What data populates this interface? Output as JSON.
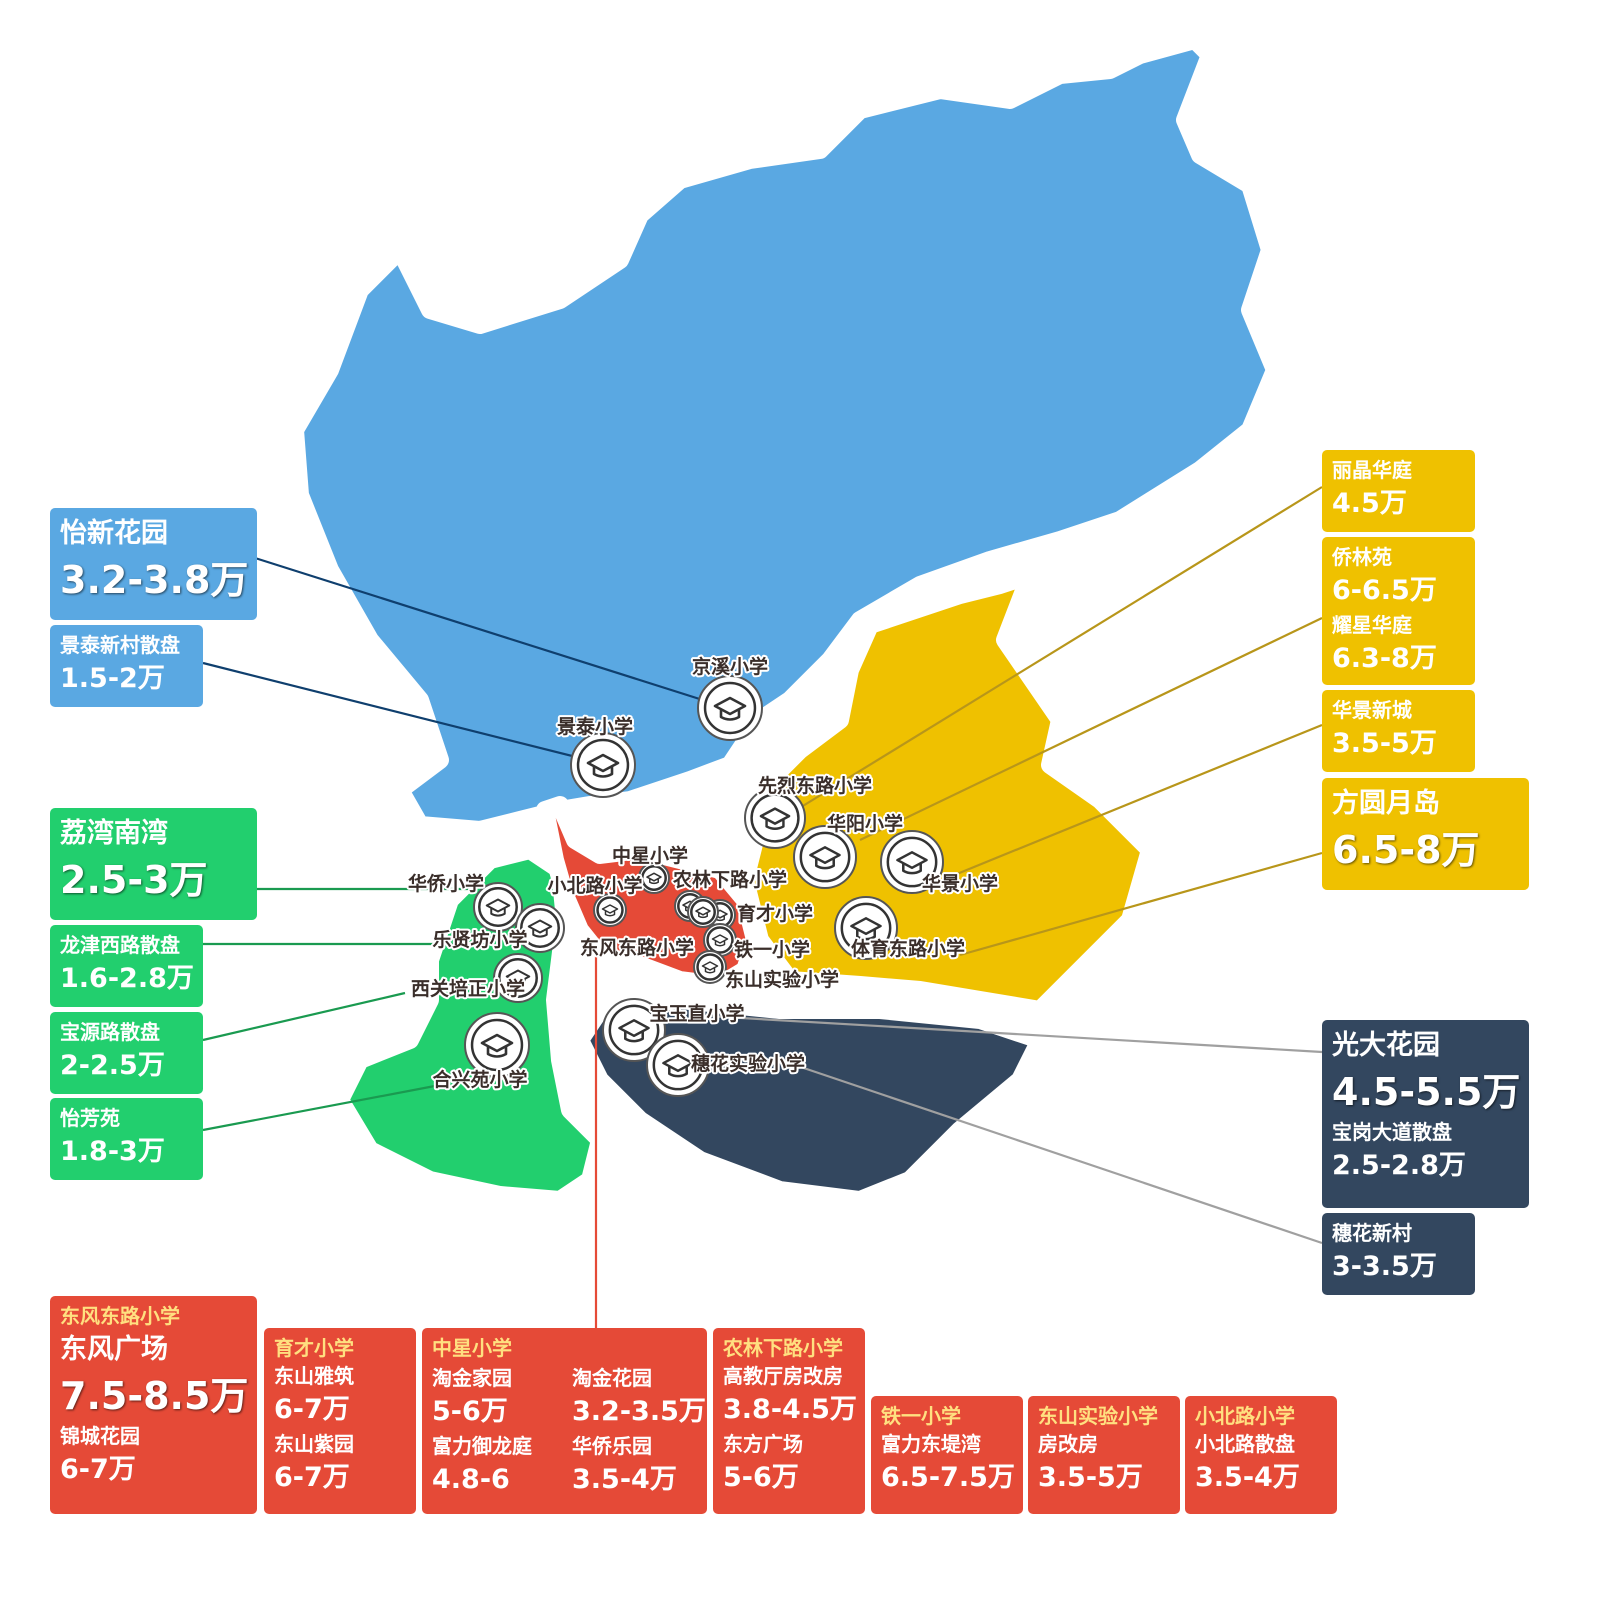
{
  "colors": {
    "blue": "#5aa8e2",
    "yellow": "#efc100",
    "green": "#22cf6e",
    "navy": "#33475f",
    "red": "#e54a37"
  },
  "schools": [
    {
      "name": "京溪小学",
      "icon": "graduation-cap-icon"
    },
    {
      "name": "景泰小学",
      "icon": "graduation-cap-icon"
    },
    {
      "name": "先烈东路小学",
      "icon": "graduation-cap-icon"
    },
    {
      "name": "华阳小学",
      "icon": "graduation-cap-icon"
    },
    {
      "name": "华景小学",
      "icon": "graduation-cap-icon"
    },
    {
      "name": "中星小学",
      "icon": "graduation-cap-icon"
    },
    {
      "name": "农林下路小学",
      "icon": "graduation-cap-icon"
    },
    {
      "name": "小北路小学",
      "icon": "graduation-cap-icon"
    },
    {
      "name": "华侨小学",
      "icon": "graduation-cap-icon"
    },
    {
      "name": "育才小学",
      "icon": "graduation-cap-icon"
    },
    {
      "name": "乐贤坊小学",
      "icon": "graduation-cap-icon"
    },
    {
      "name": "东风东路小学",
      "icon": "graduation-cap-icon"
    },
    {
      "name": "铁一小学",
      "icon": "graduation-cap-icon"
    },
    {
      "name": "体育东路小学",
      "icon": "graduation-cap-icon"
    },
    {
      "name": "东山实验小学",
      "icon": "graduation-cap-icon"
    },
    {
      "name": "西关培正小学",
      "icon": "graduation-cap-icon"
    },
    {
      "name": "宝玉直小学",
      "icon": "graduation-cap-icon"
    },
    {
      "name": "穗花实验小学",
      "icon": "graduation-cap-icon"
    },
    {
      "name": "合兴苑小学",
      "icon": "graduation-cap-icon"
    }
  ],
  "blue_boxes": [
    {
      "name": "怡新花园",
      "price": "3.2-3.8万"
    },
    {
      "name": "景泰新村散盘",
      "price": "1.5-2万"
    }
  ],
  "green_boxes": [
    {
      "name": "荔湾南湾",
      "price": "2.5-3万"
    },
    {
      "name": "龙津西路散盘",
      "price": "1.6-2.8万"
    },
    {
      "name": "宝源路散盘",
      "price": "2-2.5万"
    },
    {
      "name": "怡芳苑",
      "price": "1.8-3万"
    }
  ],
  "yellow_boxes": [
    {
      "name": "丽晶华庭",
      "price": "4.5万"
    },
    {
      "name": "侨林苑",
      "price": "6-6.5万"
    },
    {
      "name": "耀星华庭",
      "price": "6.3-8万"
    },
    {
      "name": "华景新城",
      "price": "3.5-5万"
    },
    {
      "name": "方圆月岛",
      "price": "6.5-8万"
    }
  ],
  "navy_boxes": [
    {
      "name": "光大花园",
      "price": "4.5-5.5万"
    },
    {
      "name": "宝岗大道散盘",
      "price": "2.5-2.8万"
    },
    {
      "name": "穗花新村",
      "price": "3-3.5万"
    }
  ],
  "red_boxes": {
    "dongfeng": {
      "school": "东风东路小学",
      "name1": "东风广场",
      "price1": "7.5-8.5万",
      "name2": "锦城花园",
      "price2": "6-7万"
    },
    "yucai": {
      "school": "育才小学",
      "name1": "东山雅筑",
      "price1": "6-7万",
      "name2": "东山紫园",
      "price2": "6-7万"
    },
    "zhongxing": {
      "school": "中星小学",
      "name1": "淘金家园",
      "price1": "5-6万",
      "name2": "富力御龙庭",
      "price2": "4.8-6",
      "name3": "淘金花园",
      "price3": "3.2-3.5万",
      "name4": "华侨乐园",
      "price4": "3.5-4万"
    },
    "nonglin": {
      "school": "农林下路小学",
      "name1": "高教厅房改房",
      "price1": "3.8-4.5万",
      "name2": "东方广场",
      "price2": "5-6万"
    },
    "tieyi": {
      "school": "铁一小学",
      "name1": "富力东堤湾",
      "price1": "6.5-7.5万"
    },
    "dongshan": {
      "school": "东山实验小学",
      "name1": "房改房",
      "price1": "3.5-5万"
    },
    "xiaobei": {
      "school": "小北路小学",
      "name1": "小北路散盘",
      "price1": "3.5-4万"
    }
  }
}
